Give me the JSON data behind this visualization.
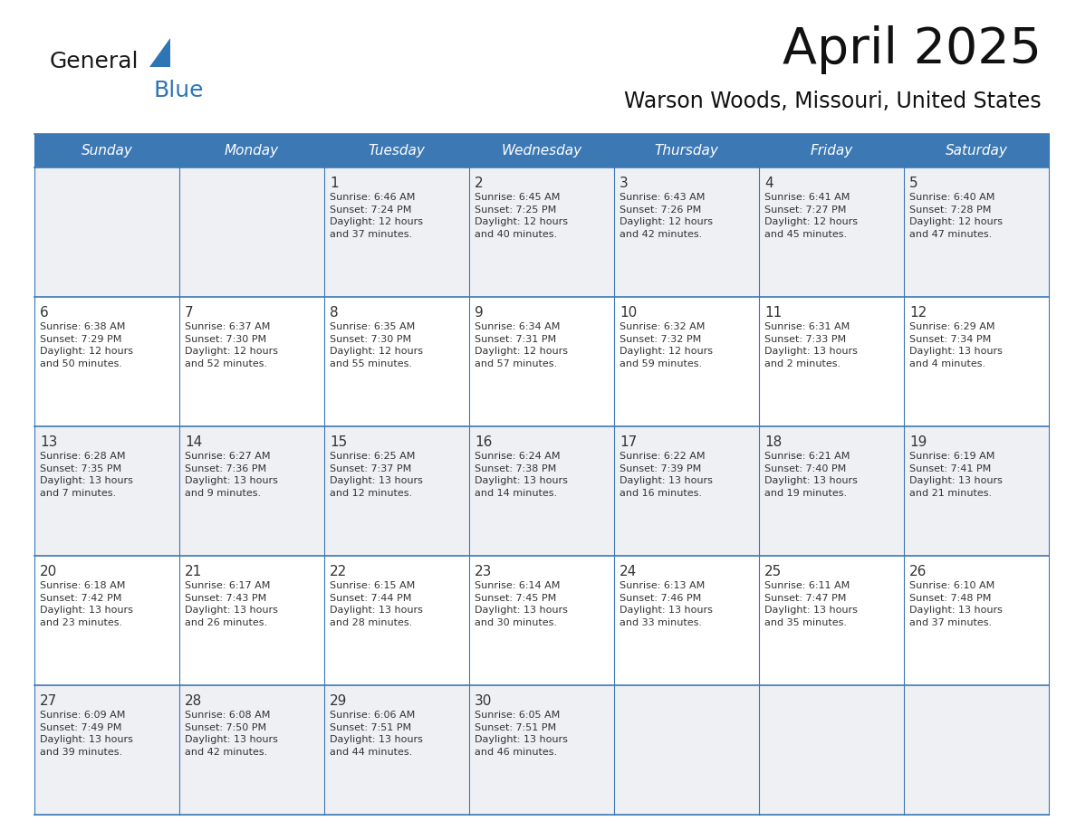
{
  "title": "April 2025",
  "subtitle": "Warson Woods, Missouri, United States",
  "header_bg": "#3C78B4",
  "header_text_color": "#FFFFFF",
  "cell_bg_odd": "#EEF0F4",
  "cell_bg_even": "#FFFFFF",
  "border_color": "#3C78B4",
  "text_color": "#333333",
  "days_of_week": [
    "Sunday",
    "Monday",
    "Tuesday",
    "Wednesday",
    "Thursday",
    "Friday",
    "Saturday"
  ],
  "weeks": [
    [
      {
        "day": "",
        "info": ""
      },
      {
        "day": "",
        "info": ""
      },
      {
        "day": "1",
        "info": "Sunrise: 6:46 AM\nSunset: 7:24 PM\nDaylight: 12 hours\nand 37 minutes."
      },
      {
        "day": "2",
        "info": "Sunrise: 6:45 AM\nSunset: 7:25 PM\nDaylight: 12 hours\nand 40 minutes."
      },
      {
        "day": "3",
        "info": "Sunrise: 6:43 AM\nSunset: 7:26 PM\nDaylight: 12 hours\nand 42 minutes."
      },
      {
        "day": "4",
        "info": "Sunrise: 6:41 AM\nSunset: 7:27 PM\nDaylight: 12 hours\nand 45 minutes."
      },
      {
        "day": "5",
        "info": "Sunrise: 6:40 AM\nSunset: 7:28 PM\nDaylight: 12 hours\nand 47 minutes."
      }
    ],
    [
      {
        "day": "6",
        "info": "Sunrise: 6:38 AM\nSunset: 7:29 PM\nDaylight: 12 hours\nand 50 minutes."
      },
      {
        "day": "7",
        "info": "Sunrise: 6:37 AM\nSunset: 7:30 PM\nDaylight: 12 hours\nand 52 minutes."
      },
      {
        "day": "8",
        "info": "Sunrise: 6:35 AM\nSunset: 7:30 PM\nDaylight: 12 hours\nand 55 minutes."
      },
      {
        "day": "9",
        "info": "Sunrise: 6:34 AM\nSunset: 7:31 PM\nDaylight: 12 hours\nand 57 minutes."
      },
      {
        "day": "10",
        "info": "Sunrise: 6:32 AM\nSunset: 7:32 PM\nDaylight: 12 hours\nand 59 minutes."
      },
      {
        "day": "11",
        "info": "Sunrise: 6:31 AM\nSunset: 7:33 PM\nDaylight: 13 hours\nand 2 minutes."
      },
      {
        "day": "12",
        "info": "Sunrise: 6:29 AM\nSunset: 7:34 PM\nDaylight: 13 hours\nand 4 minutes."
      }
    ],
    [
      {
        "day": "13",
        "info": "Sunrise: 6:28 AM\nSunset: 7:35 PM\nDaylight: 13 hours\nand 7 minutes."
      },
      {
        "day": "14",
        "info": "Sunrise: 6:27 AM\nSunset: 7:36 PM\nDaylight: 13 hours\nand 9 minutes."
      },
      {
        "day": "15",
        "info": "Sunrise: 6:25 AM\nSunset: 7:37 PM\nDaylight: 13 hours\nand 12 minutes."
      },
      {
        "day": "16",
        "info": "Sunrise: 6:24 AM\nSunset: 7:38 PM\nDaylight: 13 hours\nand 14 minutes."
      },
      {
        "day": "17",
        "info": "Sunrise: 6:22 AM\nSunset: 7:39 PM\nDaylight: 13 hours\nand 16 minutes."
      },
      {
        "day": "18",
        "info": "Sunrise: 6:21 AM\nSunset: 7:40 PM\nDaylight: 13 hours\nand 19 minutes."
      },
      {
        "day": "19",
        "info": "Sunrise: 6:19 AM\nSunset: 7:41 PM\nDaylight: 13 hours\nand 21 minutes."
      }
    ],
    [
      {
        "day": "20",
        "info": "Sunrise: 6:18 AM\nSunset: 7:42 PM\nDaylight: 13 hours\nand 23 minutes."
      },
      {
        "day": "21",
        "info": "Sunrise: 6:17 AM\nSunset: 7:43 PM\nDaylight: 13 hours\nand 26 minutes."
      },
      {
        "day": "22",
        "info": "Sunrise: 6:15 AM\nSunset: 7:44 PM\nDaylight: 13 hours\nand 28 minutes."
      },
      {
        "day": "23",
        "info": "Sunrise: 6:14 AM\nSunset: 7:45 PM\nDaylight: 13 hours\nand 30 minutes."
      },
      {
        "day": "24",
        "info": "Sunrise: 6:13 AM\nSunset: 7:46 PM\nDaylight: 13 hours\nand 33 minutes."
      },
      {
        "day": "25",
        "info": "Sunrise: 6:11 AM\nSunset: 7:47 PM\nDaylight: 13 hours\nand 35 minutes."
      },
      {
        "day": "26",
        "info": "Sunrise: 6:10 AM\nSunset: 7:48 PM\nDaylight: 13 hours\nand 37 minutes."
      }
    ],
    [
      {
        "day": "27",
        "info": "Sunrise: 6:09 AM\nSunset: 7:49 PM\nDaylight: 13 hours\nand 39 minutes."
      },
      {
        "day": "28",
        "info": "Sunrise: 6:08 AM\nSunset: 7:50 PM\nDaylight: 13 hours\nand 42 minutes."
      },
      {
        "day": "29",
        "info": "Sunrise: 6:06 AM\nSunset: 7:51 PM\nDaylight: 13 hours\nand 44 minutes."
      },
      {
        "day": "30",
        "info": "Sunrise: 6:05 AM\nSunset: 7:51 PM\nDaylight: 13 hours\nand 46 minutes."
      },
      {
        "day": "",
        "info": ""
      },
      {
        "day": "",
        "info": ""
      },
      {
        "day": "",
        "info": ""
      }
    ]
  ],
  "logo_text_general": "General",
  "logo_text_blue": "Blue",
  "logo_triangle_color": "#2E75B6",
  "general_color": "#1a1a1a",
  "blue_color": "#2E75B6",
  "fig_width": 11.88,
  "fig_height": 9.18,
  "dpi": 100
}
